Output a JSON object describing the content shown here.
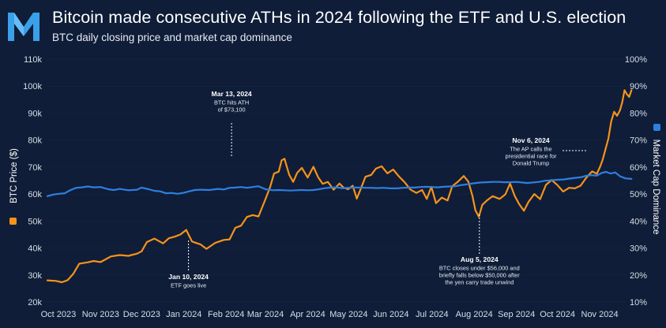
{
  "header": {
    "title": "Bitcoin made consecutive ATHs in 2024 following the ETF and U.S. election",
    "subtitle": "BTC daily closing price and market cap dominance"
  },
  "colors": {
    "background": "#0f1d38",
    "price": "#f7931a",
    "dominance": "#2e7fe0",
    "grid": "#2a3a5c"
  },
  "chart_data": {
    "type": "line",
    "title": "Bitcoin made consecutive ATHs in 2024 following the ETF and U.S. election",
    "subtitle": "BTC daily closing price and market cap dominance",
    "xlabel": "",
    "ylabel": "BTC Price ($)",
    "y2label": "Market Cap Dominance",
    "ylim": [
      20000,
      110000
    ],
    "y2lim": [
      10,
      100
    ],
    "xlim": [
      0,
      1
    ],
    "yticks": [
      "20k",
      "30k",
      "40k",
      "50k",
      "60k",
      "70k",
      "80k",
      "90k",
      "100k",
      "110k"
    ],
    "y2ticks": [
      "10%",
      "20%",
      "30%",
      "40%",
      "50%",
      "60%",
      "70%",
      "80%",
      "90%",
      "100%"
    ],
    "xticks": [
      {
        "label": "Oct 2023",
        "t": 0.019
      },
      {
        "label": "Nov 2023",
        "t": 0.092
      },
      {
        "label": "Dec 2023",
        "t": 0.163
      },
      {
        "label": "Jan 2024",
        "t": 0.236
      },
      {
        "label": "Feb 2024",
        "t": 0.309
      },
      {
        "label": "Mar 2024",
        "t": 0.377
      },
      {
        "label": "Apr 2024",
        "t": 0.45
      },
      {
        "label": "May 2024",
        "t": 0.521
      },
      {
        "label": "Jun 2024",
        "t": 0.594
      },
      {
        "label": "Jul 2024",
        "t": 0.665
      },
      {
        "label": "Aug 2024",
        "t": 0.738
      },
      {
        "label": "Sep 2024",
        "t": 0.811
      },
      {
        "label": "Oct 2024",
        "t": 0.882
      },
      {
        "label": "Nov 2024",
        "t": 0.955
      }
    ],
    "legend": [
      {
        "name": "BTC Price ($)",
        "axis": "left",
        "color": "#f7931a"
      },
      {
        "name": "Market Cap Dominance",
        "axis": "right",
        "color": "#2e7fe0"
      }
    ],
    "series": [
      {
        "name": "BTC Price ($)",
        "axis": "left",
        "points": [
          [
            0.0,
            28000
          ],
          [
            0.015,
            27800
          ],
          [
            0.025,
            27300
          ],
          [
            0.035,
            28100
          ],
          [
            0.045,
            30500
          ],
          [
            0.055,
            34200
          ],
          [
            0.07,
            34700
          ],
          [
            0.08,
            35200
          ],
          [
            0.092,
            34800
          ],
          [
            0.11,
            36900
          ],
          [
            0.125,
            37400
          ],
          [
            0.14,
            37100
          ],
          [
            0.155,
            37900
          ],
          [
            0.163,
            38800
          ],
          [
            0.172,
            42200
          ],
          [
            0.185,
            43500
          ],
          [
            0.2,
            41700
          ],
          [
            0.21,
            43600
          ],
          [
            0.22,
            44200
          ],
          [
            0.23,
            45000
          ],
          [
            0.24,
            46700
          ],
          [
            0.25,
            42400
          ],
          [
            0.265,
            41300
          ],
          [
            0.275,
            39700
          ],
          [
            0.29,
            41900
          ],
          [
            0.305,
            43000
          ],
          [
            0.315,
            43200
          ],
          [
            0.325,
            47500
          ],
          [
            0.335,
            48300
          ],
          [
            0.345,
            51500
          ],
          [
            0.355,
            52200
          ],
          [
            0.365,
            51700
          ],
          [
            0.375,
            57000
          ],
          [
            0.385,
            62500
          ],
          [
            0.392,
            67600
          ],
          [
            0.4,
            68300
          ],
          [
            0.405,
            72500
          ],
          [
            0.41,
            73100
          ],
          [
            0.418,
            67200
          ],
          [
            0.425,
            64500
          ],
          [
            0.432,
            67900
          ],
          [
            0.44,
            69700
          ],
          [
            0.45,
            66100
          ],
          [
            0.46,
            70100
          ],
          [
            0.468,
            66300
          ],
          [
            0.476,
            63800
          ],
          [
            0.485,
            64500
          ],
          [
            0.495,
            61600
          ],
          [
            0.505,
            63900
          ],
          [
            0.512,
            62400
          ],
          [
            0.52,
            61800
          ],
          [
            0.528,
            63100
          ],
          [
            0.535,
            58300
          ],
          [
            0.542,
            62000
          ],
          [
            0.55,
            66400
          ],
          [
            0.56,
            67100
          ],
          [
            0.568,
            69400
          ],
          [
            0.578,
            70300
          ],
          [
            0.588,
            67700
          ],
          [
            0.598,
            69100
          ],
          [
            0.608,
            66500
          ],
          [
            0.618,
            64300
          ],
          [
            0.628,
            61600
          ],
          [
            0.638,
            60400
          ],
          [
            0.648,
            61500
          ],
          [
            0.656,
            58200
          ],
          [
            0.664,
            62700
          ],
          [
            0.672,
            56600
          ],
          [
            0.682,
            58700
          ],
          [
            0.692,
            57600
          ],
          [
            0.7,
            62900
          ],
          [
            0.71,
            64600
          ],
          [
            0.72,
            66700
          ],
          [
            0.728,
            64600
          ],
          [
            0.735,
            59300
          ],
          [
            0.74,
            54000
          ],
          [
            0.746,
            51600
          ],
          [
            0.752,
            56000
          ],
          [
            0.76,
            57600
          ],
          [
            0.77,
            59200
          ],
          [
            0.782,
            58200
          ],
          [
            0.792,
            59900
          ],
          [
            0.8,
            63900
          ],
          [
            0.808,
            59300
          ],
          [
            0.816,
            56200
          ],
          [
            0.824,
            53800
          ],
          [
            0.832,
            57100
          ],
          [
            0.842,
            60000
          ],
          [
            0.852,
            58100
          ],
          [
            0.862,
            63400
          ],
          [
            0.872,
            65200
          ],
          [
            0.882,
            63300
          ],
          [
            0.892,
            60900
          ],
          [
            0.902,
            62300
          ],
          [
            0.912,
            62100
          ],
          [
            0.922,
            63100
          ],
          [
            0.932,
            66100
          ],
          [
            0.942,
            68400
          ],
          [
            0.95,
            67500
          ],
          [
            0.955,
            69800
          ],
          [
            0.96,
            72600
          ],
          [
            0.965,
            76600
          ],
          [
            0.97,
            80500
          ],
          [
            0.975,
            87000
          ],
          [
            0.98,
            90500
          ],
          [
            0.985,
            89000
          ],
          [
            0.99,
            91000
          ],
          [
            0.994,
            94000
          ],
          [
            0.998,
            98500
          ],
          [
            1.002,
            97000
          ],
          [
            1.006,
            96000
          ],
          [
            1.01,
            98500
          ]
        ]
      },
      {
        "name": "Market Cap Dominance",
        "axis": "right",
        "points": [
          [
            0.0,
            49.2
          ],
          [
            0.01,
            49.8
          ],
          [
            0.02,
            50.1
          ],
          [
            0.03,
            50.3
          ],
          [
            0.04,
            51.5
          ],
          [
            0.05,
            52.3
          ],
          [
            0.06,
            52.5
          ],
          [
            0.07,
            52.8
          ],
          [
            0.08,
            52.5
          ],
          [
            0.092,
            52.6
          ],
          [
            0.105,
            51.8
          ],
          [
            0.115,
            51.5
          ],
          [
            0.125,
            51.9
          ],
          [
            0.14,
            51.4
          ],
          [
            0.155,
            51.6
          ],
          [
            0.163,
            52.4
          ],
          [
            0.175,
            51.8
          ],
          [
            0.185,
            51.2
          ],
          [
            0.195,
            51.0
          ],
          [
            0.205,
            50.3
          ],
          [
            0.215,
            50.4
          ],
          [
            0.225,
            50.1
          ],
          [
            0.236,
            50.5
          ],
          [
            0.245,
            51.0
          ],
          [
            0.255,
            51.5
          ],
          [
            0.265,
            51.6
          ],
          [
            0.28,
            51.5
          ],
          [
            0.295,
            51.9
          ],
          [
            0.305,
            51.7
          ],
          [
            0.315,
            52.3
          ],
          [
            0.325,
            52.4
          ],
          [
            0.335,
            52.6
          ],
          [
            0.345,
            52.3
          ],
          [
            0.355,
            52.6
          ],
          [
            0.365,
            52.9
          ],
          [
            0.377,
            51.8
          ],
          [
            0.39,
            51.4
          ],
          [
            0.4,
            51.5
          ],
          [
            0.41,
            51.4
          ],
          [
            0.42,
            51.3
          ],
          [
            0.43,
            51.4
          ],
          [
            0.44,
            51.5
          ],
          [
            0.45,
            51.4
          ],
          [
            0.46,
            51.5
          ],
          [
            0.47,
            51.8
          ],
          [
            0.48,
            52.2
          ],
          [
            0.49,
            52.4
          ],
          [
            0.5,
            52.5
          ],
          [
            0.51,
            52.2
          ],
          [
            0.521,
            52.3
          ],
          [
            0.53,
            52.4
          ],
          [
            0.54,
            52.4
          ],
          [
            0.55,
            52.3
          ],
          [
            0.56,
            52.3
          ],
          [
            0.57,
            52.2
          ],
          [
            0.58,
            52.3
          ],
          [
            0.594,
            52.1
          ],
          [
            0.605,
            52.1
          ],
          [
            0.615,
            52.3
          ],
          [
            0.625,
            52.4
          ],
          [
            0.635,
            52.4
          ],
          [
            0.645,
            52.6
          ],
          [
            0.655,
            52.7
          ],
          [
            0.665,
            52.6
          ],
          [
            0.675,
            52.5
          ],
          [
            0.685,
            52.7
          ],
          [
            0.695,
            52.8
          ],
          [
            0.705,
            52.9
          ],
          [
            0.715,
            53.3
          ],
          [
            0.725,
            53.6
          ],
          [
            0.738,
            54.0
          ],
          [
            0.75,
            54.3
          ],
          [
            0.76,
            54.4
          ],
          [
            0.77,
            54.5
          ],
          [
            0.78,
            54.5
          ],
          [
            0.79,
            54.4
          ],
          [
            0.8,
            54.4
          ],
          [
            0.811,
            54.5
          ],
          [
            0.82,
            54.3
          ],
          [
            0.83,
            54.1
          ],
          [
            0.84,
            54.3
          ],
          [
            0.85,
            54.5
          ],
          [
            0.86,
            54.9
          ],
          [
            0.87,
            55.1
          ],
          [
            0.882,
            55.3
          ],
          [
            0.892,
            55.4
          ],
          [
            0.902,
            55.7
          ],
          [
            0.912,
            56.0
          ],
          [
            0.922,
            56.2
          ],
          [
            0.932,
            56.8
          ],
          [
            0.942,
            57.0
          ],
          [
            0.95,
            56.8
          ],
          [
            0.958,
            57.8
          ],
          [
            0.966,
            58.2
          ],
          [
            0.974,
            57.6
          ],
          [
            0.982,
            58.0
          ],
          [
            0.99,
            56.6
          ],
          [
            1.0,
            55.8
          ],
          [
            1.01,
            55.6
          ]
        ]
      }
    ],
    "annotations": [
      {
        "date": "Mar 13, 2024",
        "lines": [
          "BTC hits ATH",
          "of $73,100"
        ],
        "t": 0.41,
        "value": 73100,
        "axis": "left",
        "anchor": "above"
      },
      {
        "date": "Jan 10, 2024",
        "lines": [
          "ETF goes live"
        ],
        "t": 0.244,
        "value": 40000,
        "axis": "left",
        "anchor": "below"
      },
      {
        "date": "Aug 5, 2024",
        "lines": [
          "BTC closes under $56,000 and",
          "briefly falls below $50,000 after",
          "the yen carry trade unwind"
        ],
        "t": 0.747,
        "value": 52000,
        "axis": "left",
        "anchor": "below"
      },
      {
        "date": "Nov 6, 2024",
        "lines": [
          "The AP calls the",
          "presidential race for",
          "Donald Trump"
        ],
        "t": 0.955,
        "value": 75000,
        "axis": "left",
        "anchor": "left"
      }
    ]
  }
}
